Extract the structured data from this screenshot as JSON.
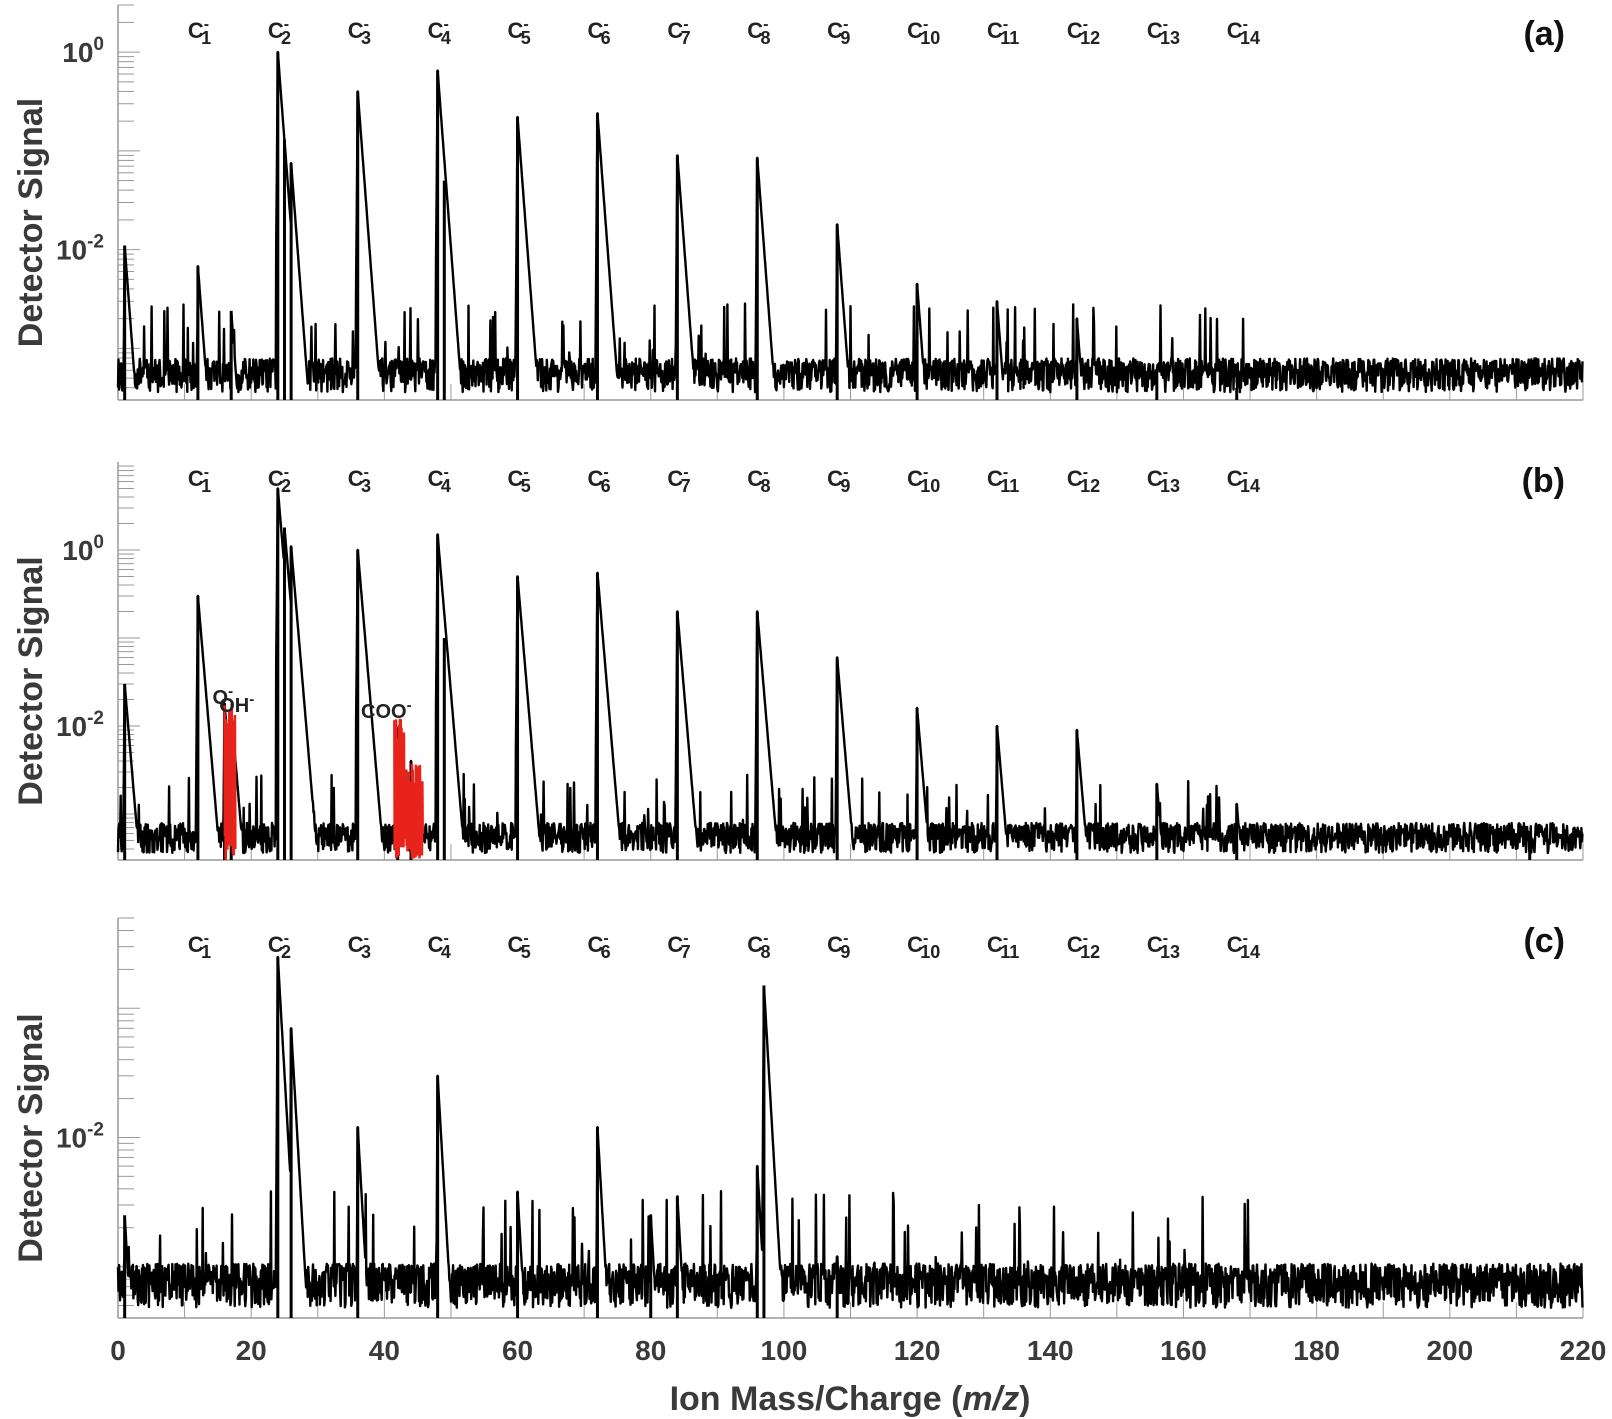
{
  "figure": {
    "xlabel_main": "Ion Mass/Charge (",
    "xlabel_italic": "m/z",
    "xlabel_close": ")",
    "ylabel": "Detector Signal",
    "x_ticks": [
      "0",
      "20",
      "40",
      "60",
      "80",
      "100",
      "120",
      "140",
      "160",
      "180",
      "200",
      "220"
    ]
  },
  "chart_data": [
    {
      "type": "line",
      "panel": "(a)",
      "xlabel": "",
      "ylabel": "Detector Signal",
      "xlim": [
        0,
        220
      ],
      "ylim": [
        0.0003,
        3
      ],
      "yscale": "log",
      "y_tick_labels": [
        "10^0",
        "10^-2"
      ],
      "x": [
        1,
        12,
        17,
        24,
        25,
        26,
        36,
        48,
        49,
        60,
        72,
        84,
        96,
        108,
        120,
        132,
        144,
        156,
        168
      ],
      "series": [
        {
          "values": [
            0.011,
            0.0068,
            0.0024,
            1.0,
            0.13,
            0.075,
            0.4,
            0.65,
            0.05,
            0.22,
            0.24,
            0.09,
            0.085,
            0.018,
            0.0045,
            0.003,
            0.002,
            0.0006,
            0.0004
          ]
        }
      ],
      "peak_labels": [
        {
          "base": "C",
          "sup": "-",
          "sub": "1",
          "x": 12
        },
        {
          "base": "C",
          "sup": "-",
          "sub": "2",
          "x": 24
        },
        {
          "base": "C",
          "sup": "-",
          "sub": "3",
          "x": 36
        },
        {
          "base": "C",
          "sup": "-",
          "sub": "4",
          "x": 48
        },
        {
          "base": "C",
          "sup": "-",
          "sub": "5",
          "x": 60
        },
        {
          "base": "C",
          "sup": "-",
          "sub": "6",
          "x": 72
        },
        {
          "base": "C",
          "sup": "-",
          "sub": "7",
          "x": 84
        },
        {
          "base": "C",
          "sup": "-",
          "sub": "8",
          "x": 96
        },
        {
          "base": "C",
          "sup": "-",
          "sub": "9",
          "x": 108
        },
        {
          "base": "C",
          "sup": "-",
          "sub": "10",
          "x": 120
        },
        {
          "base": "C",
          "sup": "-",
          "sub": "11",
          "x": 132
        },
        {
          "base": "C",
          "sup": "-",
          "sub": "12",
          "x": 144
        },
        {
          "base": "C",
          "sup": "-",
          "sub": "13",
          "x": 156
        },
        {
          "base": "C",
          "sup": "-",
          "sub": "14",
          "x": 168
        }
      ],
      "annotations": []
    },
    {
      "type": "line",
      "panel": "(b)",
      "xlabel": "",
      "ylabel": "Detector Signal",
      "xlim": [
        0,
        220
      ],
      "ylim": [
        0.0003,
        10
      ],
      "yscale": "log",
      "y_tick_labels": [
        "10^0",
        "10^-2"
      ],
      "x": [
        1,
        12,
        16,
        17,
        24,
        25,
        26,
        36,
        42,
        44,
        48,
        49,
        60,
        72,
        84,
        96,
        108,
        120,
        132,
        144,
        156,
        168,
        212
      ],
      "series": [
        {
          "values": [
            0.03,
            0.3,
            0.018,
            0.015,
            5.0,
            1.8,
            1.1,
            1.0,
            0.0095,
            0.004,
            1.5,
            0.1,
            0.5,
            0.55,
            0.2,
            0.2,
            0.06,
            0.016,
            0.01,
            0.009,
            0.0022,
            0.0013,
            0.0006
          ]
        }
      ],
      "highlighted_series_color": "#e8231c",
      "peak_labels": [
        {
          "base": "C",
          "sup": "-",
          "sub": "1",
          "x": 12
        },
        {
          "base": "C",
          "sup": "-",
          "sub": "2",
          "x": 24
        },
        {
          "base": "C",
          "sup": "-",
          "sub": "3",
          "x": 36
        },
        {
          "base": "C",
          "sup": "-",
          "sub": "4",
          "x": 48
        },
        {
          "base": "C",
          "sup": "-",
          "sub": "5",
          "x": 60
        },
        {
          "base": "C",
          "sup": "-",
          "sub": "6",
          "x": 72
        },
        {
          "base": "C",
          "sup": "-",
          "sub": "7",
          "x": 84
        },
        {
          "base": "C",
          "sup": "-",
          "sub": "8",
          "x": 96
        },
        {
          "base": "C",
          "sup": "-",
          "sub": "9",
          "x": 108
        },
        {
          "base": "C",
          "sup": "-",
          "sub": "10",
          "x": 120
        },
        {
          "base": "C",
          "sup": "-",
          "sub": "11",
          "x": 132
        },
        {
          "base": "C",
          "sup": "-",
          "sub": "12",
          "x": 144
        },
        {
          "base": "C",
          "sup": "-",
          "sub": "13",
          "x": 156
        },
        {
          "base": "C",
          "sup": "-",
          "sub": "14",
          "x": 168
        }
      ],
      "annotations": [
        {
          "text": "O",
          "sup": "-",
          "x": 16
        },
        {
          "text": "OH",
          "sup": "-",
          "x": 17
        },
        {
          "text": "COO",
          "sup": "-",
          "x": 44
        }
      ]
    },
    {
      "type": "line",
      "panel": "(c)",
      "xlabel": "Ion Mass/Charge (m/z)",
      "ylabel": "Detector Signal",
      "xlim": [
        0,
        220
      ],
      "ylim": [
        0.0004,
        0.5
      ],
      "yscale": "log",
      "y_tick_labels": [
        "10^-2"
      ],
      "x": [
        1,
        24,
        26,
        36,
        48,
        60,
        72,
        80,
        84,
        96,
        97,
        108
      ],
      "series": [
        {
          "values": [
            0.0025,
            0.25,
            0.07,
            0.012,
            0.03,
            0.0038,
            0.012,
            0.0025,
            0.0035,
            0.006,
            0.15,
            0.0012
          ]
        }
      ],
      "peak_labels": [
        {
          "base": "C",
          "sup": "-",
          "sub": "1",
          "x": 12
        },
        {
          "base": "C",
          "sup": "-",
          "sub": "2",
          "x": 24
        },
        {
          "base": "C",
          "sup": "-",
          "sub": "3",
          "x": 36
        },
        {
          "base": "C",
          "sup": "-",
          "sub": "4",
          "x": 48
        },
        {
          "base": "C",
          "sup": "-",
          "sub": "5",
          "x": 60
        },
        {
          "base": "C",
          "sup": "-",
          "sub": "6",
          "x": 72
        },
        {
          "base": "C",
          "sup": "-",
          "sub": "7",
          "x": 84
        },
        {
          "base": "C",
          "sup": "-",
          "sub": "8",
          "x": 96
        },
        {
          "base": "C",
          "sup": "-",
          "sub": "9",
          "x": 108
        },
        {
          "base": "C",
          "sup": "-",
          "sub": "10",
          "x": 120
        },
        {
          "base": "C",
          "sup": "-",
          "sub": "11",
          "x": 132
        },
        {
          "base": "C",
          "sup": "-",
          "sub": "12",
          "x": 144
        },
        {
          "base": "C",
          "sup": "-",
          "sub": "13",
          "x": 156
        },
        {
          "base": "C",
          "sup": "-",
          "sub": "14",
          "x": 168
        }
      ],
      "annotations": []
    }
  ]
}
